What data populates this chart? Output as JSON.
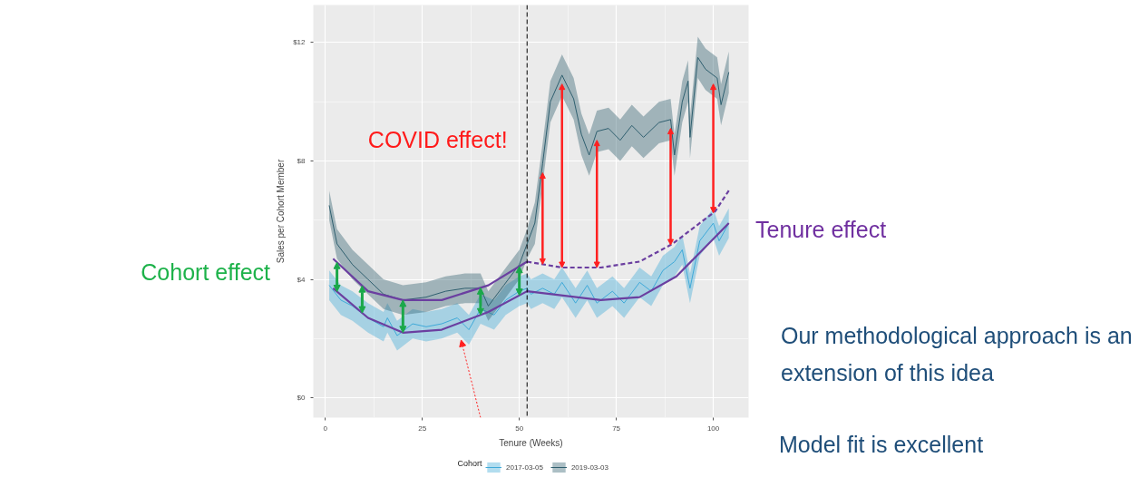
{
  "chart_data": {
    "type": "line",
    "xlabel": "Tenure (Weeks)",
    "ylabel": "Sales per Cohort Member",
    "legend_title": "Cohort",
    "xlim": [
      -3.1,
      109.1
    ],
    "ylim": [
      -0.67,
      13.27
    ],
    "xticks": [
      0,
      25,
      50,
      75,
      100
    ],
    "yticks": [
      {
        "value": 0,
        "label": "$0"
      },
      {
        "value": 4,
        "label": "$4"
      },
      {
        "value": 8,
        "label": "$8"
      },
      {
        "value": 12,
        "label": "$12"
      }
    ],
    "grid": true,
    "legend": "bottom",
    "ref_lines": [
      {
        "axis": "x",
        "value": 52,
        "color": "#000000",
        "line_style": "dashed"
      }
    ],
    "annotations": [
      "COVID effect!",
      "Cohort effect",
      "Tenure effect",
      "Our methodological approach is an extension of this idea",
      "Model fit is excellent"
    ],
    "series": [
      {
        "name": "2017-03-05",
        "color": "#3fa9d8",
        "x": [
          1,
          4,
          7,
          11,
          15,
          16,
          18.5,
          22.5,
          26,
          30,
          34,
          37,
          40,
          43.5,
          46.5,
          50,
          52,
          53,
          56,
          59,
          61,
          64.5,
          67.5,
          70,
          74,
          77,
          81,
          84,
          87,
          90,
          92,
          94,
          96.5,
          100,
          101.5,
          104
        ],
        "values": [
          3.8,
          3.3,
          3.1,
          2.7,
          2.4,
          2.7,
          2.1,
          2.5,
          2.4,
          2.5,
          2.7,
          2.3,
          3.0,
          2.8,
          3.3,
          3.6,
          3.7,
          3.5,
          3.7,
          3.5,
          3.9,
          3.2,
          3.8,
          3.2,
          3.6,
          3.2,
          3.9,
          3.6,
          4.3,
          4.6,
          5.0,
          3.7,
          5.3,
          5.9,
          5.3,
          5.9
        ],
        "lower": [
          3.3,
          2.8,
          2.6,
          2.2,
          1.9,
          2.2,
          1.6,
          2.0,
          1.9,
          2.0,
          2.2,
          1.8,
          2.5,
          2.3,
          2.8,
          3.1,
          3.2,
          3.0,
          3.2,
          3.0,
          3.4,
          2.7,
          3.3,
          2.7,
          3.1,
          2.7,
          3.4,
          3.1,
          3.8,
          4.1,
          4.5,
          3.2,
          4.8,
          5.4,
          4.8,
          5.4
        ],
        "upper": [
          4.3,
          3.8,
          3.6,
          3.2,
          2.9,
          3.2,
          2.6,
          3.0,
          2.9,
          3.0,
          3.2,
          2.8,
          3.5,
          3.3,
          3.8,
          4.1,
          4.2,
          4.0,
          4.2,
          4.0,
          4.4,
          3.7,
          4.3,
          3.7,
          4.1,
          3.7,
          4.4,
          4.1,
          4.8,
          5.1,
          5.5,
          4.2,
          5.8,
          6.4,
          5.8,
          6.4
        ]
      },
      {
        "name": "2019-03-03",
        "color": "#2f5f6f",
        "x": [
          1,
          3,
          7,
          11,
          15,
          20,
          26,
          31,
          36,
          40,
          42,
          46,
          50,
          52,
          54,
          56,
          58,
          61,
          64,
          66,
          68,
          70,
          73,
          76,
          79,
          82,
          86,
          89,
          90,
          92,
          93.5,
          94,
          96,
          98,
          101,
          102,
          104
        ],
        "values": [
          6.5,
          5.2,
          4.5,
          4.0,
          3.5,
          3.3,
          3.4,
          3.6,
          3.7,
          3.7,
          3.1,
          3.8,
          4.5,
          5.2,
          5.9,
          7.9,
          10.0,
          10.9,
          10.1,
          8.9,
          8.2,
          9.0,
          9.1,
          8.7,
          9.2,
          8.8,
          9.3,
          9.4,
          8.2,
          10.0,
          10.7,
          8.8,
          11.5,
          11.1,
          10.8,
          9.9,
          11.0
        ],
        "lower": [
          6.0,
          4.7,
          4.0,
          3.5,
          3.0,
          2.8,
          2.9,
          3.1,
          3.2,
          3.2,
          2.6,
          3.3,
          4.0,
          4.7,
          5.2,
          7.2,
          9.3,
          10.2,
          9.4,
          8.2,
          7.5,
          8.3,
          8.4,
          8.0,
          8.5,
          8.1,
          8.6,
          8.7,
          7.5,
          9.3,
          10.0,
          8.1,
          10.8,
          10.4,
          10.1,
          9.2,
          10.3
        ],
        "upper": [
          7.0,
          5.7,
          5.0,
          4.5,
          4.0,
          3.8,
          3.9,
          4.1,
          4.2,
          4.2,
          3.6,
          4.3,
          5.0,
          5.7,
          6.6,
          8.6,
          10.7,
          11.6,
          10.8,
          9.6,
          8.9,
          9.7,
          9.8,
          9.4,
          9.9,
          9.5,
          10.0,
          10.1,
          8.9,
          10.7,
          11.4,
          9.5,
          12.2,
          11.8,
          11.5,
          10.6,
          11.7
        ]
      },
      {
        "color": "#6b3fa0",
        "x": [
          2,
          11,
          20,
          30,
          42,
          52
        ],
        "values": [
          4.7,
          3.6,
          3.3,
          3.3,
          3.8,
          4.6
        ]
      },
      {
        "color": "#6b3fa0",
        "line_style": "dashed",
        "x": [
          52,
          61,
          71,
          81,
          89.5,
          100.5,
          104
        ],
        "values": [
          4.6,
          4.4,
          4.4,
          4.6,
          5.2,
          6.3,
          7.0
        ]
      },
      {
        "color": "#6b3fa0",
        "x": [
          2,
          11,
          20,
          30,
          42,
          52,
          71,
          81,
          90.5,
          104
        ],
        "values": [
          3.7,
          2.7,
          2.2,
          2.3,
          2.9,
          3.6,
          3.3,
          3.4,
          4.1,
          5.9
        ]
      }
    ]
  }
}
